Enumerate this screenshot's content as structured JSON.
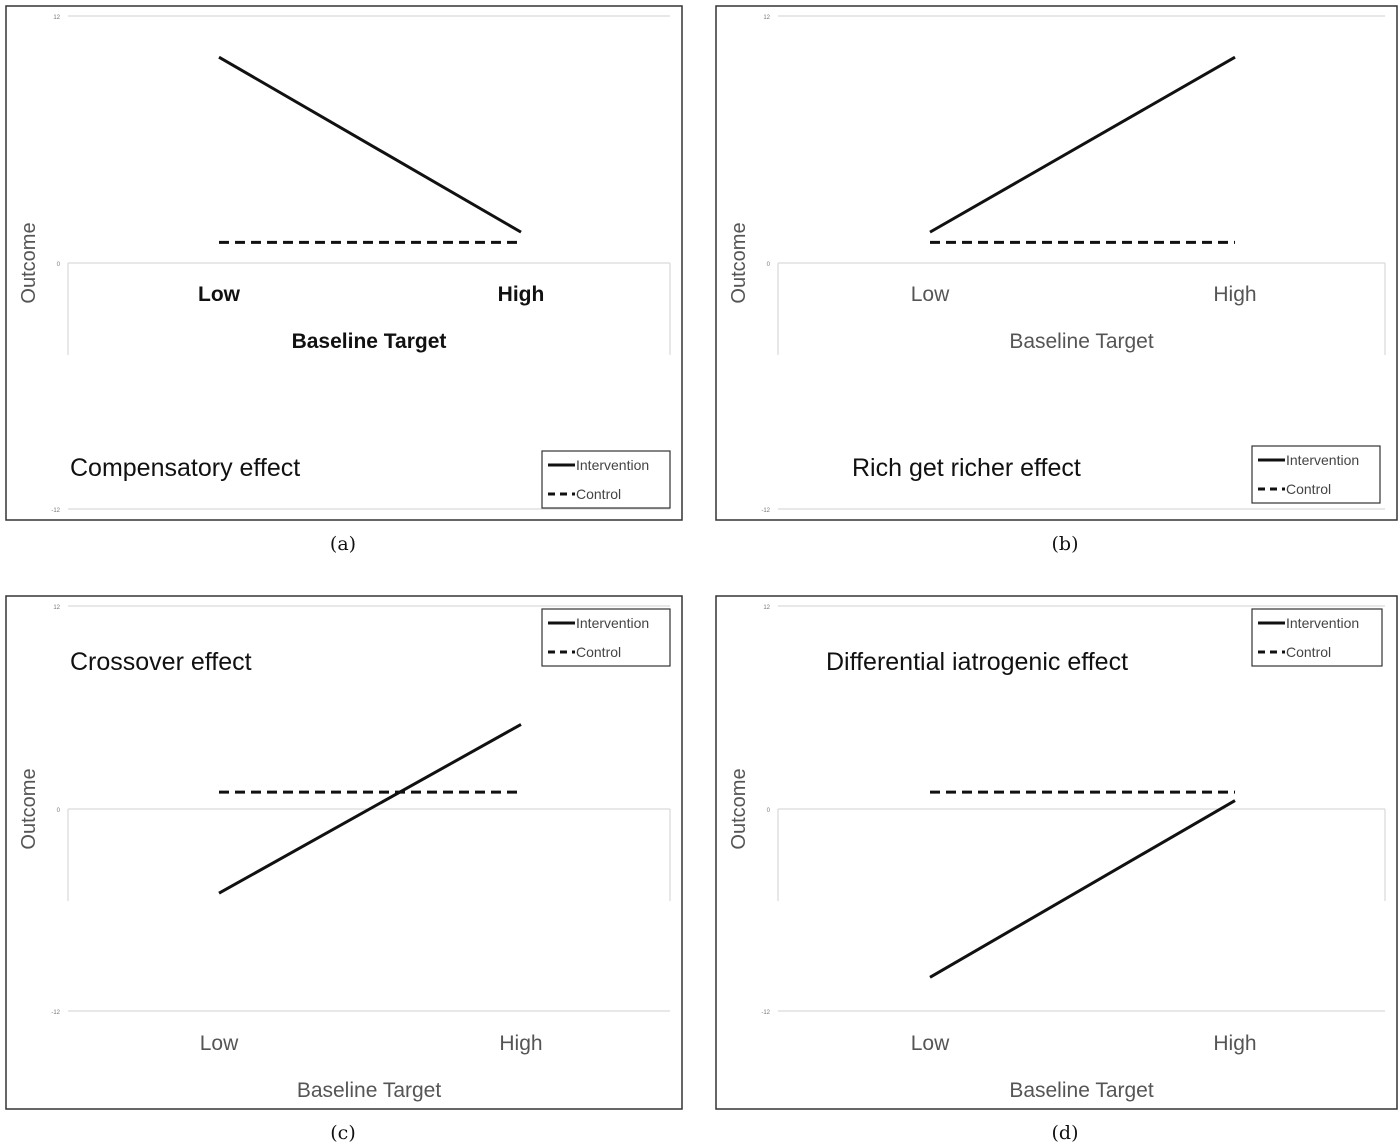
{
  "chart_data": [
    {
      "type": "line",
      "panel_label": "(a)",
      "effect_label": "Compensatory effect",
      "xlabel": "Baseline Target",
      "ylabel": "Outcome",
      "categories": [
        "Low",
        "High"
      ],
      "yticks": [
        "12",
        "0",
        "-12"
      ],
      "ylim": [
        -12,
        12
      ],
      "grid": true,
      "bold_axis_text": true,
      "legend_position": "bottom-right",
      "series": [
        {
          "name": "Intervention",
          "style": "solid",
          "values": [
            10,
            1.5
          ]
        },
        {
          "name": "Control",
          "style": "dashed",
          "values": [
            1,
            1
          ]
        }
      ]
    },
    {
      "type": "line",
      "panel_label": "(b)",
      "effect_label": "Rich get richer effect",
      "xlabel": "Baseline Target",
      "ylabel": "Outcome",
      "categories": [
        "Low",
        "High"
      ],
      "yticks": [
        "12",
        "0",
        "-12"
      ],
      "ylim": [
        -12,
        12
      ],
      "grid": true,
      "bold_axis_text": false,
      "legend_position": "bottom-right",
      "series": [
        {
          "name": "Intervention",
          "style": "solid",
          "values": [
            1.5,
            10
          ]
        },
        {
          "name": "Control",
          "style": "dashed",
          "values": [
            1,
            1
          ]
        }
      ]
    },
    {
      "type": "line",
      "panel_label": "(c)",
      "effect_label": "Crossover effect",
      "xlabel": "Baseline Target",
      "ylabel": "Outcome",
      "categories": [
        "Low",
        "High"
      ],
      "yticks": [
        "12",
        "0",
        "-12"
      ],
      "ylim": [
        -12,
        12
      ],
      "grid": true,
      "bold_axis_text": false,
      "legend_position": "top-right",
      "series": [
        {
          "name": "Intervention",
          "style": "solid",
          "values": [
            -5,
            5
          ]
        },
        {
          "name": "Control",
          "style": "dashed",
          "values": [
            1,
            1
          ]
        }
      ]
    },
    {
      "type": "line",
      "panel_label": "(d)",
      "effect_label": "Differential iatrogenic effect",
      "xlabel": "Baseline Target",
      "ylabel": "Outcome",
      "categories": [
        "Low",
        "High"
      ],
      "yticks": [
        "12",
        "0",
        "-12"
      ],
      "ylim": [
        -12,
        12
      ],
      "grid": true,
      "bold_axis_text": false,
      "legend_position": "top-right",
      "series": [
        {
          "name": "Intervention",
          "style": "solid",
          "values": [
            -10,
            0.5
          ]
        },
        {
          "name": "Control",
          "style": "dashed",
          "values": [
            1,
            1
          ]
        }
      ]
    }
  ]
}
